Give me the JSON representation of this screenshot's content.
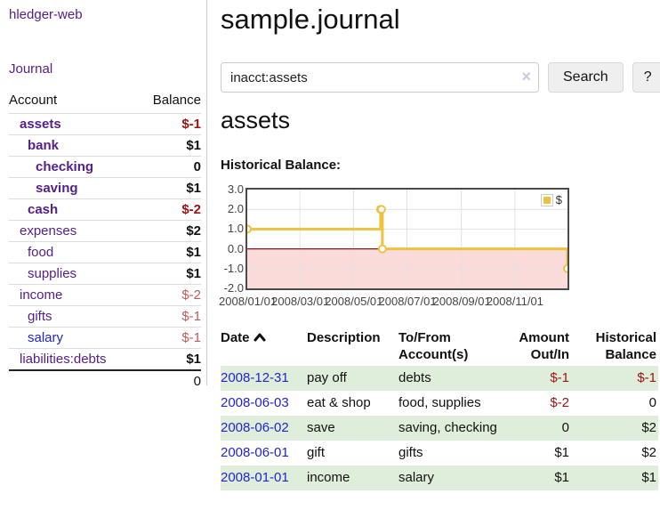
{
  "app": {
    "brand": "hledger-web",
    "nav_journal": "Journal"
  },
  "colors": {
    "link_purple": "#55208c",
    "link_blue": "#2323cf",
    "negative_strong": "#a11212",
    "negative_soft": "#c05a5a",
    "row_stripe_green": "#dfeeda",
    "series_gold": "#edc240",
    "negative_region_pink": "#fbdada",
    "zero_line_red": "#8f1616"
  },
  "sidebar": {
    "header": {
      "account": "Account",
      "balance": "Balance"
    },
    "accounts": [
      {
        "name": "assets",
        "indent": 0,
        "bold": true,
        "link": "purple",
        "balance": "$-1",
        "balance_class": "neg-strong"
      },
      {
        "name": "bank",
        "indent": 1,
        "bold": true,
        "link": "purple",
        "balance": "$1",
        "balance_class": "strong"
      },
      {
        "name": "checking",
        "indent": 2,
        "bold": true,
        "link": "purple",
        "balance": "0",
        "balance_class": "strong"
      },
      {
        "name": "saving",
        "indent": 2,
        "bold": true,
        "link": "purple",
        "balance": "$1",
        "balance_class": "strong"
      },
      {
        "name": "cash",
        "indent": 1,
        "bold": true,
        "link": "purple",
        "balance": "$-2",
        "balance_class": "neg-strong"
      },
      {
        "name": "expenses",
        "indent": 0,
        "bold": false,
        "link": "purple",
        "balance": "$2",
        "balance_class": "strong"
      },
      {
        "name": "food",
        "indent": 1,
        "bold": false,
        "link": "purple",
        "balance": "$1",
        "balance_class": "strong"
      },
      {
        "name": "supplies",
        "indent": 1,
        "bold": false,
        "link": "purple",
        "balance": "$1",
        "balance_class": "strong"
      },
      {
        "name": "income",
        "indent": 0,
        "bold": false,
        "link": "purple",
        "balance": "$-2",
        "balance_class": "neg-soft"
      },
      {
        "name": "gifts",
        "indent": 1,
        "bold": false,
        "link": "purple",
        "balance": "$-1",
        "balance_class": "neg-soft"
      },
      {
        "name": "salary",
        "indent": 1,
        "bold": false,
        "link": "blue",
        "balance": "$-1",
        "balance_class": "neg-soft"
      },
      {
        "name": "liabilities:debts",
        "indent": 0,
        "bold": false,
        "link": "purple",
        "balance": "$1",
        "balance_class": "strong"
      }
    ],
    "total": "0"
  },
  "main": {
    "title": "sample.journal",
    "search": {
      "value": "inacct:assets",
      "clear_icon": "×",
      "button_label": "Search",
      "help_label": "?"
    },
    "account_heading": "assets",
    "chart_label": "Historical Balance:"
  },
  "chart_data": {
    "type": "line",
    "step": true,
    "title": "Historical Balance:",
    "series": [
      {
        "name": "$",
        "color": "#edc240",
        "points": [
          [
            "2008-01-01",
            1
          ],
          [
            "2008-06-01",
            2
          ],
          [
            "2008-06-02",
            2
          ],
          [
            "2008-06-03",
            0
          ],
          [
            "2008-12-31",
            -1
          ]
        ]
      }
    ],
    "x_range": [
      "2008-01-01",
      "2008-12-31"
    ],
    "ylim": [
      -2,
      3
    ],
    "yticks": [
      3,
      2,
      1,
      0,
      -1,
      -2
    ],
    "ytick_labels": [
      "3.0",
      "2.0",
      "1.0",
      "0.0",
      "-1.0",
      "-2.0"
    ],
    "xtick_labels": [
      "2008/01/01",
      "2008/03/01",
      "2008/05/01",
      "2008/07/01",
      "2008/09/01",
      "2008/11/01"
    ],
    "grid": true,
    "legend_position": "top-right",
    "legend_label": "$",
    "negative_region_fill": "#fbdada",
    "zero_line_color": "#8f1616"
  },
  "register": {
    "sort_icon": "chevron-up-icon",
    "headers": [
      {
        "label": "Date",
        "sorted": true
      },
      {
        "label": "Description"
      },
      {
        "label": "To/From Account(s)"
      },
      {
        "label": "Amount Out/In",
        "align": "right"
      },
      {
        "label": "Historical Balance",
        "align": "right"
      }
    ],
    "rows": [
      {
        "date": "2008-12-31",
        "description": "pay off",
        "accounts": "debts",
        "amount": "$-1",
        "balance": "$-1"
      },
      {
        "date": "2008-06-03",
        "description": "eat & shop",
        "accounts": "food, supplies",
        "amount": "$-2",
        "balance": "0"
      },
      {
        "date": "2008-06-02",
        "description": "save",
        "accounts": "saving, checking",
        "amount": "0",
        "balance": "$2"
      },
      {
        "date": "2008-06-01",
        "description": "gift",
        "accounts": "gifts",
        "amount": "$1",
        "balance": "$2"
      },
      {
        "date": "2008-01-01",
        "description": "income",
        "accounts": "salary",
        "amount": "$1",
        "balance": "$1"
      }
    ]
  }
}
